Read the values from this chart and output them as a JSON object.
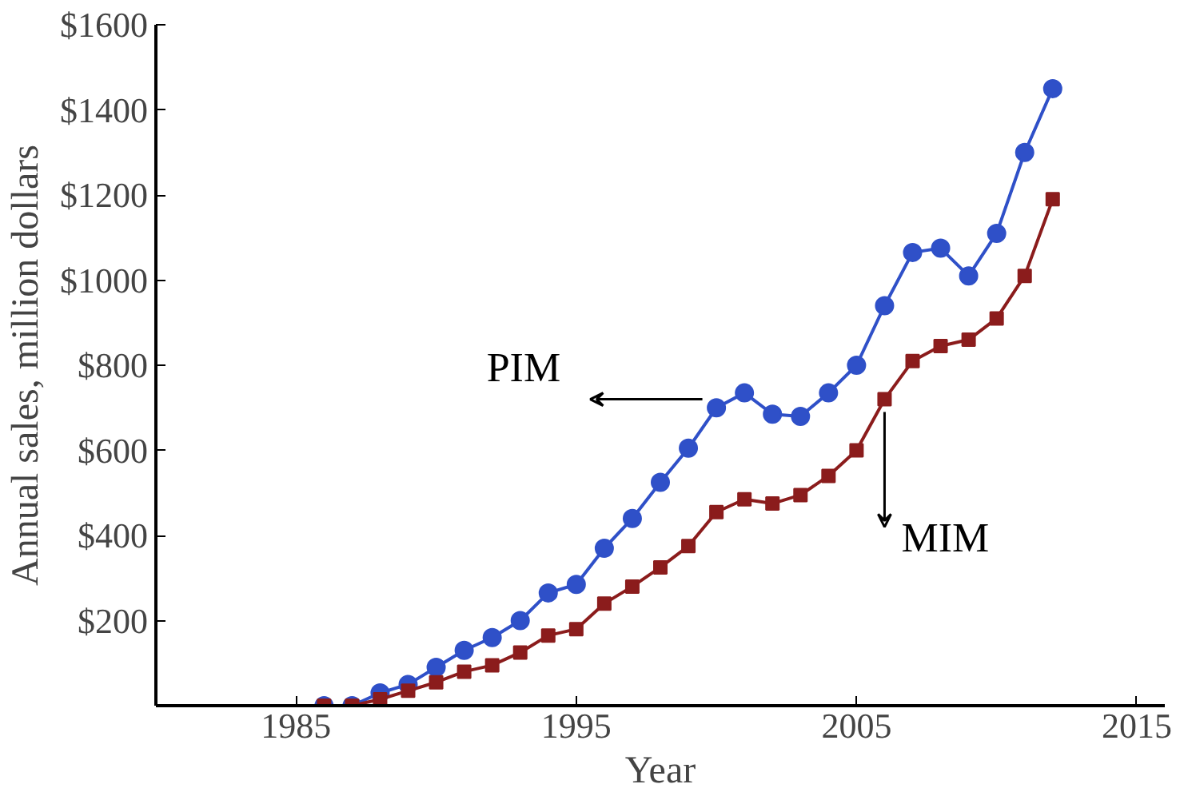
{
  "chart_data": {
    "type": "line",
    "xlabel": "Year",
    "ylabel": "Annual sales, million dollars",
    "x": [
      1986,
      1987,
      1988,
      1989,
      1990,
      1991,
      1992,
      1993,
      1994,
      1995,
      1996,
      1997,
      1998,
      1999,
      2000,
      2001,
      2002,
      2003,
      2004,
      2005,
      2006,
      2007,
      2008,
      2009,
      2010,
      2011,
      2012
    ],
    "series": [
      {
        "name": "PIM",
        "color": "#2f50c8",
        "marker": "circle",
        "values": [
          0,
          0,
          30,
          50,
          90,
          130,
          160,
          200,
          265,
          285,
          370,
          440,
          525,
          605,
          700,
          735,
          685,
          680,
          735,
          800,
          940,
          1065,
          1075,
          1010,
          1110,
          1300,
          1450
        ]
      },
      {
        "name": "MIM",
        "color": "#8b1c1c",
        "marker": "square",
        "values": [
          0,
          0,
          15,
          35,
          55,
          80,
          95,
          125,
          165,
          180,
          240,
          280,
          325,
          375,
          455,
          485,
          475,
          495,
          540,
          600,
          720,
          810,
          845,
          860,
          910,
          1010,
          1190
        ]
      }
    ],
    "xlim": [
      1980,
      2016
    ],
    "xticks": [
      1985,
      1995,
      2005,
      2015
    ],
    "ylim": [
      0,
      1600
    ],
    "yticks": [
      {
        "value": 200,
        "label": "$200"
      },
      {
        "value": 400,
        "label": "$400"
      },
      {
        "value": 600,
        "label": "$600"
      },
      {
        "value": 800,
        "label": "$800"
      },
      {
        "value": 1000,
        "label": "$1000"
      },
      {
        "value": 1200,
        "label": "$1200"
      },
      {
        "value": 1400,
        "label": "$1400"
      },
      {
        "value": 1600,
        "label": "$1600"
      }
    ],
    "grid": false,
    "line_style": "solid"
  }
}
